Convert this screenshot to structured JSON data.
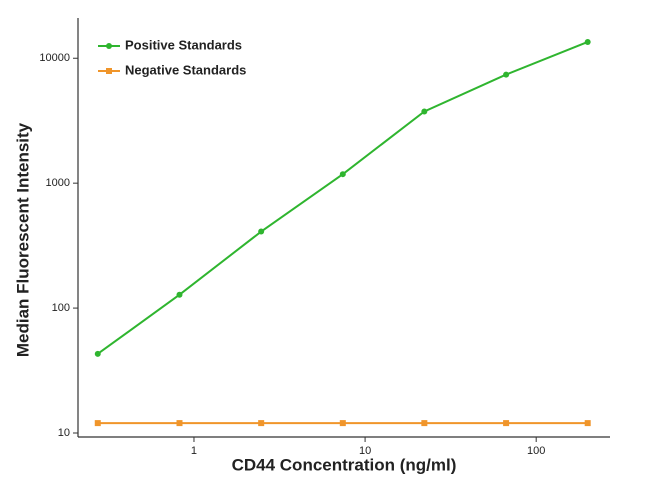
{
  "chart_data": {
    "type": "line",
    "x_label": "CD44 Concentration (ng/ml)",
    "y_label": "Median Fluorescent Intensity",
    "x": [
      0.274,
      0.823,
      2.47,
      7.41,
      22.2,
      66.7,
      200
    ],
    "series": [
      {
        "name": "Positive Standards",
        "color": "#2fb52f",
        "marker": "circle",
        "values": [
          43,
          128,
          410,
          1180,
          3750,
          7400,
          13500
        ]
      },
      {
        "name": "Negative Standards",
        "color": "#f0952a",
        "marker": "square",
        "values": [
          12,
          12,
          12,
          12,
          12,
          12,
          12
        ]
      }
    ],
    "xlim": [
      0.21,
      270
    ],
    "ylim": [
      10,
      21000
    ],
    "xticks": [
      1,
      10,
      100
    ],
    "yticks": [
      10,
      100,
      1000,
      10000
    ],
    "x_log": true,
    "y_log": true,
    "grid": false,
    "legend": "upper left"
  }
}
